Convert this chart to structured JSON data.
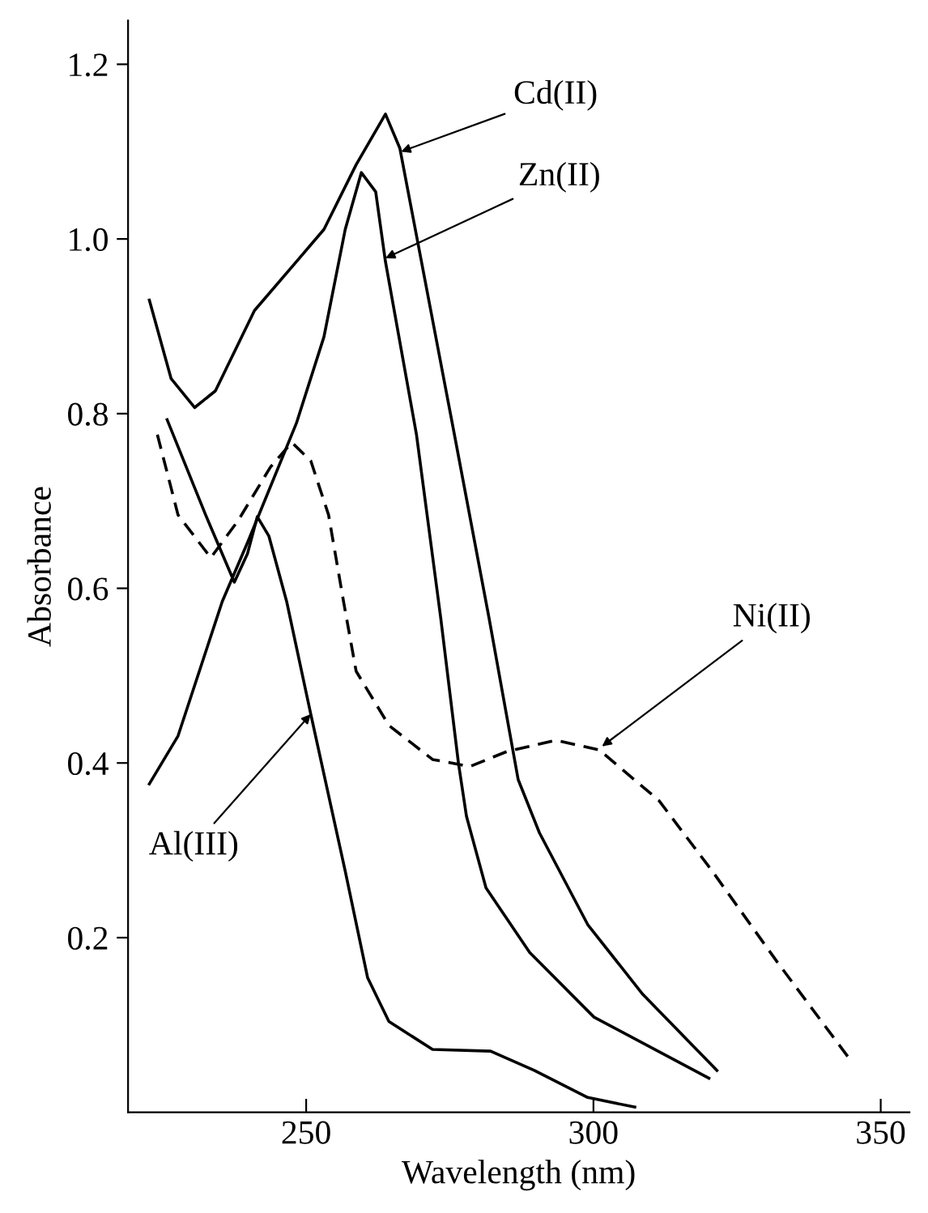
{
  "chart_data": {
    "type": "line",
    "xlabel": "Wavelength (nm)",
    "ylabel": "Absorbance",
    "xlim": [
      219,
      355
    ],
    "ylim": [
      0,
      1.25
    ],
    "xticks": [
      250,
      300,
      350
    ],
    "yticks": [
      0.2,
      0.4,
      0.6,
      0.8,
      {
        "value": 1,
        "label": "1.0"
      },
      1.2
    ],
    "grid": false,
    "marker": "none",
    "series": [
      {
        "color": "#000000",
        "line_style": "solid",
        "x": [
          222.7,
          226.5,
          230.6,
          234.2,
          241.0,
          248.3,
          253.1,
          258.7,
          263.8,
          266.3,
          275.6,
          281.8,
          286.9,
          290.6,
          299.0,
          308.6,
          321.5
        ],
        "values": [
          0.93,
          0.84,
          0.807,
          0.826,
          0.918,
          0.974,
          1.011,
          1.085,
          1.143,
          1.104,
          0.783,
          0.567,
          0.381,
          0.32,
          0.215,
          0.135,
          0.048
        ]
      },
      {
        "color": "#000000",
        "line_style": "solid",
        "x": [
          222.7,
          227.7,
          235.4,
          239.9,
          248.3,
          253.1,
          256.8,
          259.6,
          262.1,
          263.8,
          269.2,
          273.4,
          276.5,
          277.9,
          281.3,
          288.9,
          300.1,
          320.1
        ],
        "values": [
          0.376,
          0.431,
          0.585,
          0.654,
          0.789,
          0.888,
          1.011,
          1.076,
          1.054,
          0.974,
          0.776,
          0.567,
          0.4,
          0.339,
          0.257,
          0.183,
          0.109,
          0.039
        ]
      },
      {
        "color": "#000000",
        "line_style": "solid",
        "x": [
          225.8,
          232.5,
          237.5,
          239.8,
          241.5,
          243.5,
          246.6,
          250.8,
          256.8,
          260.7,
          264.4,
          272.0,
          282.1,
          289.7,
          299.0,
          307.2
        ],
        "values": [
          0.793,
          0.684,
          0.607,
          0.64,
          0.682,
          0.66,
          0.585,
          0.456,
          0.276,
          0.154,
          0.104,
          0.072,
          0.07,
          0.048,
          0.017,
          0.006
        ]
      },
      {
        "color": "#000000",
        "line_style": "dashed",
        "x": [
          224.1,
          227.7,
          233.4,
          238.2,
          243.8,
          247.5,
          250.8,
          253.9,
          256.5,
          258.7,
          264.4,
          272.0,
          278.5,
          284.9,
          293.4,
          301.0,
          311.4,
          320.7,
          332.0,
          344.6
        ],
        "values": [
          0.776,
          0.684,
          0.635,
          0.678,
          0.739,
          0.767,
          0.746,
          0.684,
          0.585,
          0.505,
          0.443,
          0.404,
          0.396,
          0.413,
          0.426,
          0.415,
          0.357,
          0.276,
          0.172,
          0.061
        ]
      }
    ],
    "annotations": [
      {
        "text": "Cd(II)",
        "x": 266.5,
        "y": 1.1
      },
      {
        "text": "Zn(II)",
        "x": 263.8,
        "y": 0.978
      },
      {
        "text": "Al(III)",
        "x": 250.8,
        "y": 0.456
      },
      {
        "text": "Ni(II)",
        "x": 301.5,
        "y": 0.419
      }
    ]
  }
}
